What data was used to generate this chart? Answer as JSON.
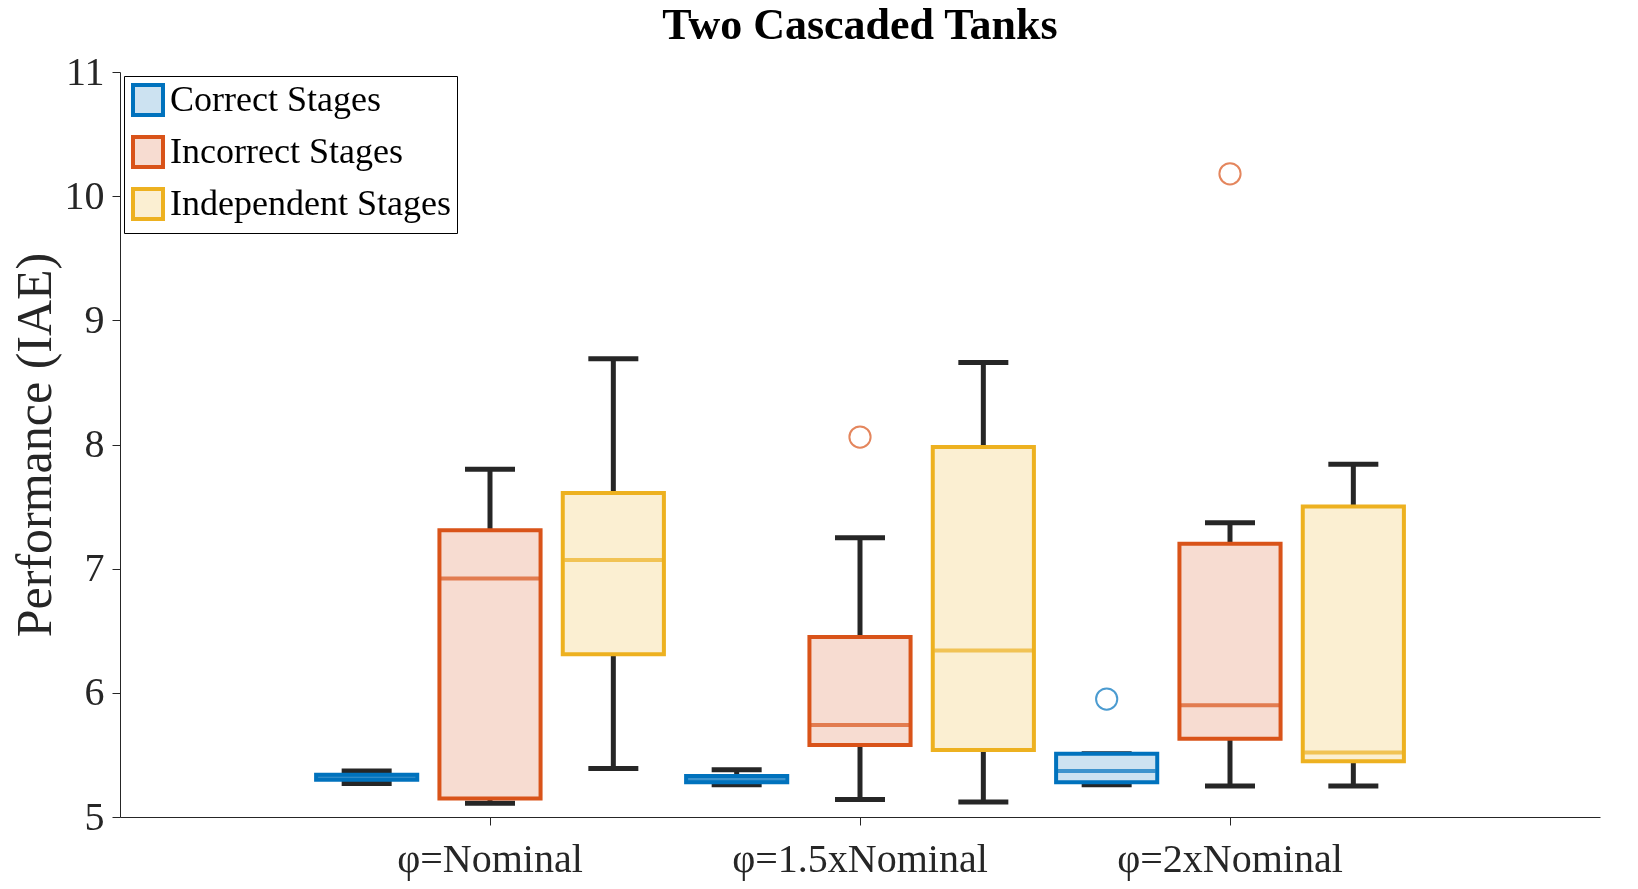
{
  "chart_data": {
    "type": "box",
    "title": "Two Cascaded Tanks",
    "ylabel": "Performance (IAE)",
    "categories": [
      "φ=Nominal",
      "φ=1.5xNominal",
      "φ=2xNominal"
    ],
    "ylim": [
      5,
      11
    ],
    "yticks": [
      5,
      6,
      7,
      8,
      9,
      10,
      11
    ],
    "grid": false,
    "legend": "top left",
    "series": [
      {
        "name": "Correct Stages",
        "color": "#0072bd",
        "boxes": [
          {
            "low": 5.27,
            "q1": 5.3,
            "median": 5.32,
            "q3": 5.34,
            "high": 5.37
          },
          {
            "low": 5.26,
            "q1": 5.28,
            "median": 5.3,
            "q3": 5.33,
            "high": 5.38
          },
          {
            "low": 5.26,
            "q1": 5.28,
            "median": 5.37,
            "q3": 5.51,
            "high": 5.51,
            "outliers": [
              5.95
            ]
          }
        ]
      },
      {
        "name": "Incorrect Stages",
        "color": "#d95319",
        "boxes": [
          {
            "low": 5.11,
            "q1": 5.15,
            "median": 6.92,
            "q3": 7.31,
            "high": 7.8
          },
          {
            "low": 5.14,
            "q1": 5.58,
            "median": 5.74,
            "q3": 6.45,
            "high": 7.25,
            "outliers": [
              8.06
            ]
          },
          {
            "low": 5.25,
            "q1": 5.63,
            "median": 5.9,
            "q3": 7.2,
            "high": 7.37,
            "outliers": [
              10.18
            ]
          }
        ]
      },
      {
        "name": "Independent Stages",
        "color": "#edb120",
        "boxes": [
          {
            "low": 5.39,
            "q1": 6.31,
            "median": 7.07,
            "q3": 7.61,
            "high": 8.69
          },
          {
            "low": 5.12,
            "q1": 5.54,
            "median": 6.34,
            "q3": 7.98,
            "high": 8.66
          },
          {
            "low": 5.25,
            "q1": 5.45,
            "median": 5.52,
            "q3": 7.5,
            "high": 7.84
          }
        ]
      }
    ]
  }
}
